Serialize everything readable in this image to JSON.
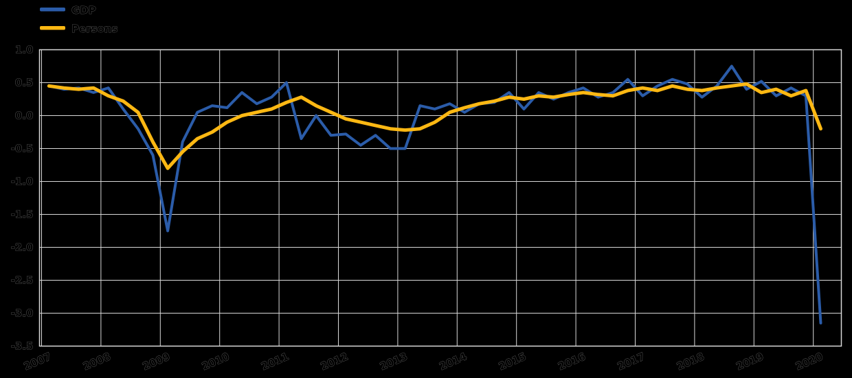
{
  "chart_data": {
    "type": "line",
    "title": "",
    "xlabel": "",
    "ylabel": "",
    "grid": true,
    "legend_position": "top-left",
    "ylim": [
      -3.5,
      1.0
    ],
    "y_ticks": [
      1.0,
      0.5,
      0.0,
      -0.5,
      -1.0,
      -1.5,
      -2.0,
      -2.5,
      -3.0,
      -3.5
    ],
    "x_tick_labels": [
      "2007",
      "2008",
      "2009",
      "2010",
      "2011",
      "2012",
      "2013",
      "2014",
      "2015",
      "2016",
      "2017",
      "2018",
      "2019",
      "2020"
    ],
    "x_frequency": "quarterly",
    "x_range": "2007Q1 - 2020Q1",
    "series": [
      {
        "name": "GDP",
        "color": "#2b5ca9",
        "width": 4,
        "values": [
          0.45,
          0.4,
          0.42,
          0.35,
          0.42,
          0.1,
          -0.2,
          -0.6,
          -1.75,
          -0.4,
          0.05,
          0.15,
          0.12,
          0.35,
          0.18,
          0.28,
          0.5,
          -0.35,
          0.0,
          -0.3,
          -0.28,
          -0.45,
          -0.3,
          -0.5,
          -0.5,
          0.15,
          0.1,
          0.18,
          0.05,
          0.18,
          0.2,
          0.35,
          0.1,
          0.35,
          0.25,
          0.35,
          0.42,
          0.28,
          0.35,
          0.55,
          0.3,
          0.45,
          0.55,
          0.48,
          0.28,
          0.45,
          0.75,
          0.4,
          0.52,
          0.3,
          0.42,
          0.3,
          -3.15
        ]
      },
      {
        "name": "Persons",
        "color": "#fdb813",
        "width": 5,
        "values": [
          0.45,
          0.42,
          0.4,
          0.42,
          0.3,
          0.22,
          0.05,
          -0.4,
          -0.8,
          -0.55,
          -0.35,
          -0.25,
          -0.1,
          0.0,
          0.05,
          0.1,
          0.2,
          0.28,
          0.15,
          0.05,
          -0.05,
          -0.1,
          -0.15,
          -0.2,
          -0.22,
          -0.2,
          -0.1,
          0.05,
          0.12,
          0.18,
          0.22,
          0.28,
          0.25,
          0.3,
          0.28,
          0.32,
          0.35,
          0.32,
          0.3,
          0.38,
          0.42,
          0.38,
          0.45,
          0.4,
          0.38,
          0.42,
          0.45,
          0.48,
          0.35,
          0.4,
          0.3,
          0.38,
          -0.2
        ]
      }
    ]
  },
  "colors": {
    "background": "#000000",
    "gridline": "#d9d9d9",
    "gdp_line": "#2b5ca9",
    "persons_line": "#fdb813"
  }
}
